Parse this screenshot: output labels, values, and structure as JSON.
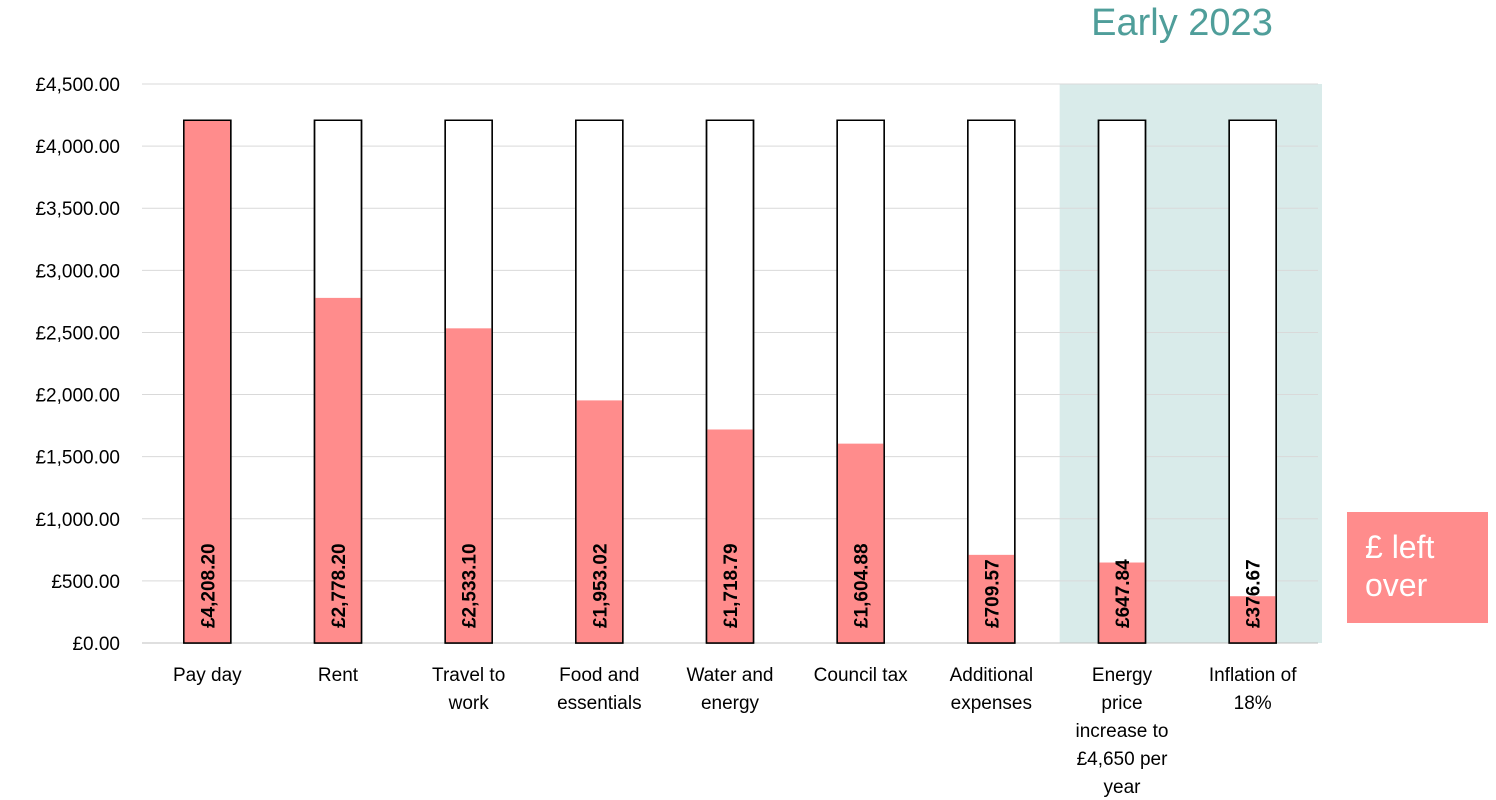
{
  "chart_data": {
    "type": "bar",
    "title": "",
    "xlabel": "",
    "ylabel": "",
    "ylim": [
      0,
      4500
    ],
    "yticks": [
      "£0.00",
      "£500.00",
      "£1,000.00",
      "£1,500.00",
      "£2,000.00",
      "£2,500.00",
      "£3,000.00",
      "£3,500.00",
      "£4,000.00",
      "£4,500.00"
    ],
    "ytick_values": [
      0,
      500,
      1000,
      1500,
      2000,
      2500,
      3000,
      3500,
      4000,
      4500
    ],
    "categories": [
      [
        "Pay day"
      ],
      [
        "Rent"
      ],
      [
        "Travel to",
        "work"
      ],
      [
        "Food and",
        "essentials"
      ],
      [
        "Water and",
        "energy"
      ],
      [
        "Council tax"
      ],
      [
        "Additional",
        "expenses"
      ],
      [
        "Energy",
        "price",
        "increase to",
        "£4,650 per",
        "year"
      ],
      [
        "Inflation of",
        "18%"
      ]
    ],
    "values": [
      4208.2,
      2778.2,
      2533.1,
      1953.02,
      1718.79,
      1604.88,
      709.57,
      647.84,
      376.67
    ],
    "value_labels": [
      "£4,208.20",
      "£2,778.20",
      "£2,533.10",
      "£1,953.02",
      "£1,718.79",
      "£1,604.88",
      "£709.57",
      "£647.84",
      "£376.67"
    ],
    "outline_value": 4208.2,
    "highlight_categories": [
      7,
      8
    ],
    "highlight_label": "Early 2023",
    "legend": [
      "£ left",
      "over"
    ],
    "grid": true,
    "colors": {
      "bar_fill": "#ff8c8c",
      "bar_outline": "#000000",
      "highlight_bg": "#d9ebea",
      "highlight_title": "#4f9e9a",
      "gridline": "#d9d9d9"
    }
  }
}
